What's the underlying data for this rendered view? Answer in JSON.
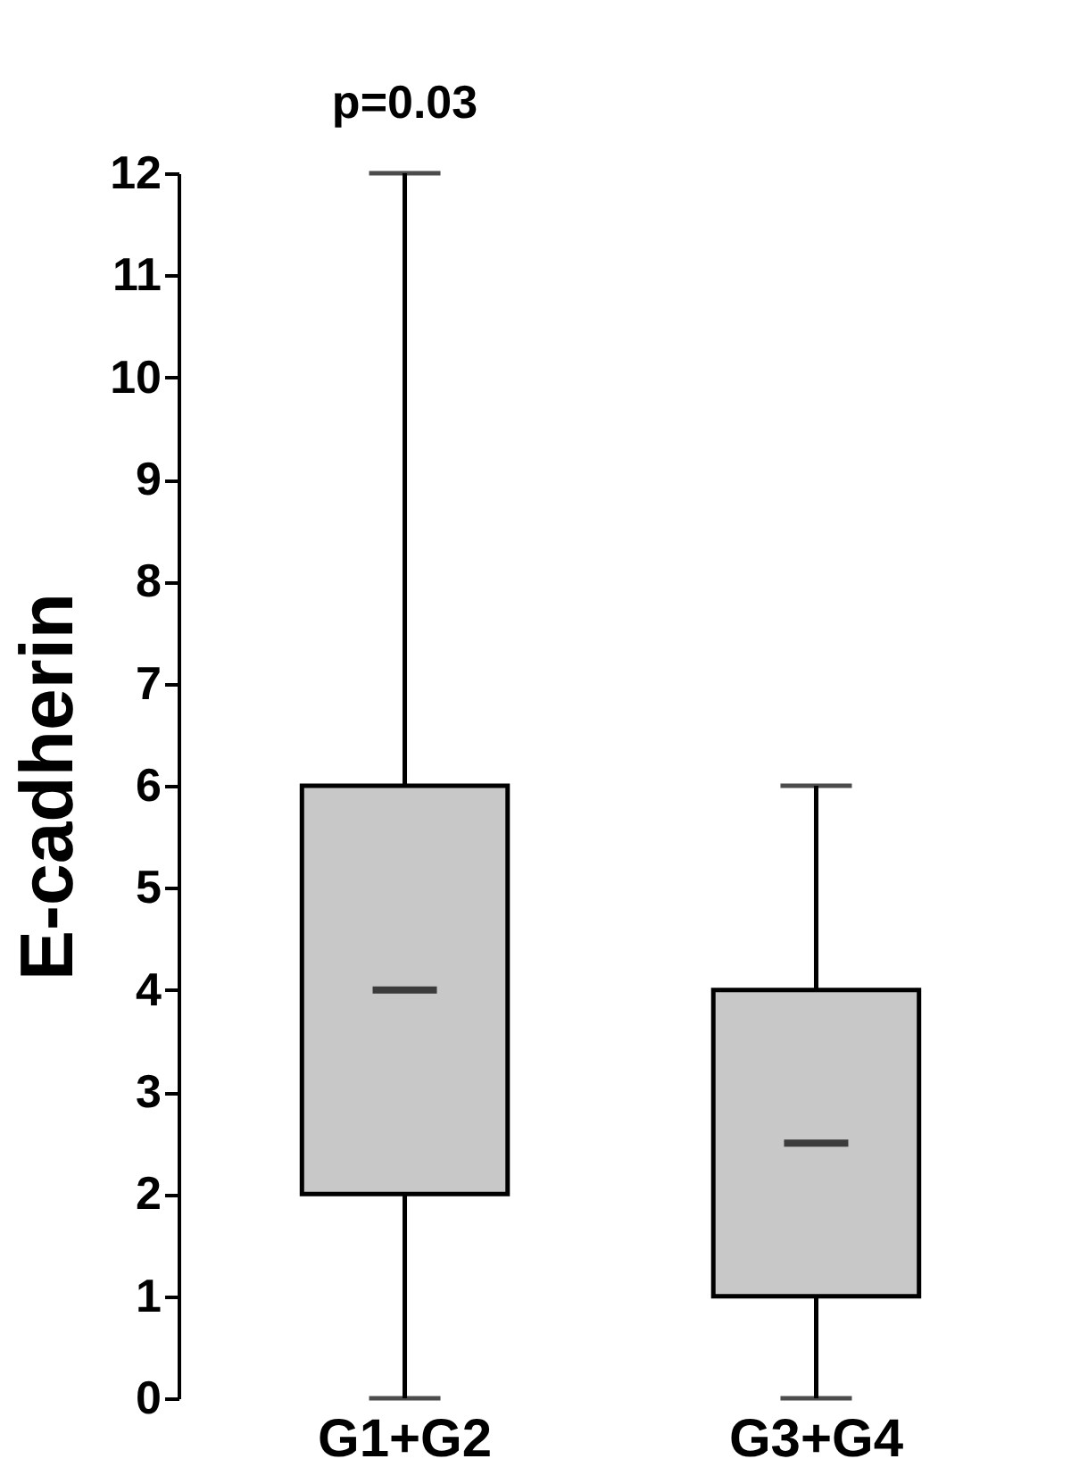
{
  "chart_data": {
    "type": "box",
    "ylabel": "E-cadherin",
    "categories": [
      "G1+G2",
      "G3+G4"
    ],
    "boxes": [
      {
        "low": 0,
        "q1": 2,
        "median": 4,
        "q3": 6,
        "high": 12
      },
      {
        "low": 0,
        "q1": 1,
        "median": 2.5,
        "q3": 4,
        "high": 6
      }
    ],
    "color": "#c8c8c8",
    "ylim": [
      0,
      12
    ],
    "yticks": [
      0,
      1,
      2,
      3,
      4,
      5,
      6,
      7,
      8,
      9,
      10,
      11,
      12
    ],
    "annotations": [
      {
        "text": "p=0.03",
        "x": "G1+G2",
        "y": 12
      }
    ]
  }
}
